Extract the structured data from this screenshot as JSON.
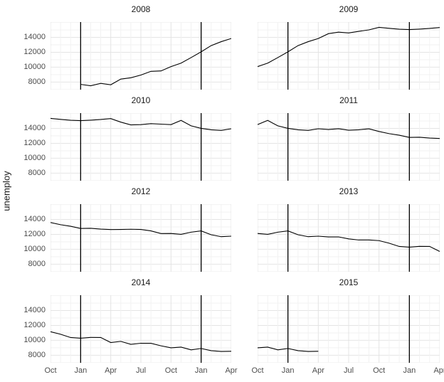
{
  "chart_data": {
    "type": "line",
    "title": "",
    "xlabel": "",
    "ylabel": "unemploy",
    "grid": true,
    "legend": false,
    "ylim": [
      6980,
      16060
    ],
    "months_span": 18,
    "y_ticks": [
      8000,
      10000,
      12000,
      14000
    ],
    "y_minor_ticks": [
      7000,
      9000,
      11000,
      13000,
      15000,
      16000
    ],
    "x_tick_labels": [
      "Oct",
      "Jan",
      "Apr",
      "Jul",
      "Oct",
      "Jan",
      "Apr"
    ],
    "x_tick_month_offsets": [
      0,
      3,
      6,
      9,
      12,
      15,
      18
    ],
    "vline_month_offsets": [
      3,
      15
    ],
    "facets": [
      {
        "year": "2008",
        "start_offset": 3,
        "values": [
          7685,
          7497,
          7822,
          7637,
          8395,
          8575,
          8937,
          9438,
          9494,
          10074,
          10538,
          11286,
          12058,
          12898,
          13426,
          13853
        ]
      },
      {
        "year": "2009",
        "start_offset": 0,
        "values": [
          10074,
          10538,
          11286,
          12058,
          12898,
          13426,
          13853,
          14499,
          14707,
          14601,
          14814,
          15009,
          15352,
          15219,
          15098,
          15046,
          15113,
          15202,
          15325
        ]
      },
      {
        "year": "2010",
        "start_offset": 0,
        "values": [
          15352,
          15219,
          15098,
          15046,
          15113,
          15202,
          15325,
          14849,
          14474,
          14512,
          14648,
          14579,
          14516,
          15081,
          14348,
          14013,
          13820,
          13737,
          13957
        ]
      },
      {
        "year": "2011",
        "start_offset": 0,
        "values": [
          14516,
          15081,
          14348,
          14013,
          13820,
          13737,
          13957,
          13855,
          13962,
          13763,
          13818,
          13948,
          13594,
          13302,
          13093,
          12797,
          12813,
          12713,
          12646
        ]
      },
      {
        "year": "2012",
        "start_offset": 0,
        "values": [
          13594,
          13302,
          13093,
          12797,
          12813,
          12713,
          12646,
          12660,
          12692,
          12656,
          12471,
          12115,
          12124,
          12005,
          12298,
          12471,
          11950,
          11689,
          11760
        ]
      },
      {
        "year": "2013",
        "start_offset": 0,
        "values": [
          12124,
          12005,
          12298,
          12471,
          11950,
          11689,
          11760,
          11654,
          11662,
          11398,
          11247,
          11251,
          11161,
          10814,
          10376,
          10280,
          10387,
          10384,
          9702
        ]
      },
      {
        "year": "2014",
        "start_offset": 0,
        "values": [
          11161,
          10814,
          10376,
          10280,
          10387,
          10384,
          9702,
          9859,
          9460,
          9608,
          9599,
          9262,
          8990,
          9090,
          8717,
          8903,
          8610,
          8504,
          8526
        ]
      },
      {
        "year": "2015",
        "start_offset": 0,
        "values": [
          8990,
          9090,
          8717,
          8903,
          8610,
          8504,
          8526
        ]
      }
    ],
    "colors": {
      "background": "#ffffff",
      "grid_major": "#e4e4e4",
      "grid_minor": "#f2f2f2",
      "series_line": "#000000",
      "vline": "#000000",
      "axis_text": "#4d4d4d",
      "facet_title_text": "#1a1a1a"
    }
  }
}
